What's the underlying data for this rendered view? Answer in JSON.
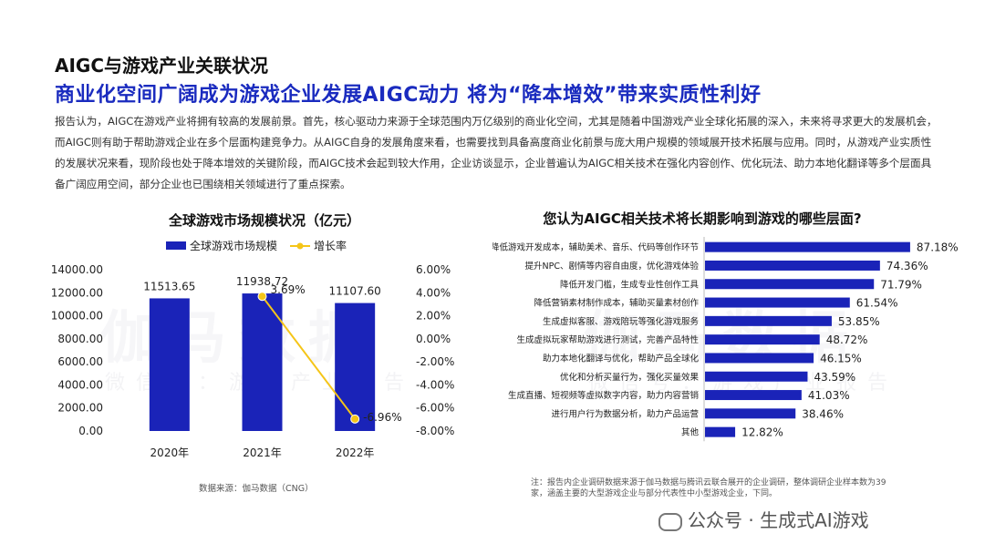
{
  "header": {
    "topic": "AIGC与游戏产业关联状况",
    "headline": "商业化空间广阔成为游戏企业发展AIGC动力 将为“降本增效”带来实质性利好"
  },
  "body_text": "报告认为，AIGC在游戏产业将拥有较高的发展前景。首先，核心驱动力来源于全球范围内万亿级别的商业化空间，尤其是随着中国游戏产业全球化拓展的深入，未来将寻求更大的发展机会，而AIGC则有助于帮助游戏企业在多个层面构建竞争力。从AIGC自身的发展角度来看，也需要找到具备高度商业化前景与庞大用户规模的领域展开技术拓展与应用。同时，从游戏产业实质性的发展状况来看，现阶段也处于降本增效的关键阶段，而AIGC技术会起到较大作用，企业访谈显示，企业普遍认为AIGC相关技术在强化内容创作、优化玩法、助力本地化翻译等多个层面具备广阔应用空间，部分企业也已围绕相关领域进行了重点探索。",
  "watermark": {
    "main": "伽马数据",
    "sub": "微信号：游戏产业报告"
  },
  "chart_data": [
    {
      "type": "bar+line",
      "title": "全球游戏市场规模状况（亿元）",
      "categories": [
        "2020年",
        "2021年",
        "2022年"
      ],
      "series": [
        {
          "name": "全球游戏市场规模",
          "type": "bar",
          "axis": "left",
          "color": "#1a23b8",
          "values": [
            11513.65,
            11938.72,
            11107.6
          ],
          "labels": [
            "11513.65",
            "11938.72",
            "11107.60"
          ]
        },
        {
          "name": "增长率",
          "type": "line",
          "axis": "right",
          "color": "#f5c518",
          "values": [
            null,
            3.69,
            -6.96
          ],
          "labels": [
            "",
            "3.69%",
            "-6.96%"
          ]
        }
      ],
      "y_left": {
        "min": 0,
        "max": 14000,
        "step": 2000,
        "ticks": [
          "0.00",
          "2000.00",
          "4000.00",
          "6000.00",
          "8000.00",
          "10000.00",
          "12000.00",
          "14000.00"
        ]
      },
      "y_right": {
        "min": -8,
        "max": 6,
        "step": 2,
        "ticks": [
          "-8.00%",
          "-6.00%",
          "-4.00%",
          "-2.00%",
          "0.00%",
          "2.00%",
          "4.00%",
          "6.00%"
        ]
      },
      "legend": "top-center",
      "source": "数据来源：伽马数据（CNG）"
    },
    {
      "type": "bar-horizontal",
      "title": "您认为AIGC相关技术将长期影响到游戏的哪些层面?",
      "color": "#1a23b8",
      "categories": [
        "降低游戏开发成本，辅助美术、音乐、代码等创作环节",
        "提升NPC、剧情等内容自由度，优化游戏体验",
        "降低开发门槛，生成专业性创作工具",
        "降低营销素材制作成本，辅助买量素材创作",
        "生成虚拟客服、游戏陪玩等强化游戏服务",
        "生成虚拟玩家帮助游戏进行测试，完善产品特性",
        "助力本地化翻译与优化，帮助产品全球化",
        "优化和分析买量行为，强化买量效果",
        "生成直播、短视频等虚拟数字内容，助力内容营销",
        "进行用户行为数据分析，助力产品运营",
        "其他"
      ],
      "values": [
        87.18,
        74.36,
        71.79,
        61.54,
        53.85,
        48.72,
        46.15,
        43.59,
        41.03,
        38.46,
        12.82
      ],
      "labels": [
        "87.18%",
        "74.36%",
        "71.79%",
        "61.54%",
        "53.85%",
        "48.72%",
        "46.15%",
        "43.59%",
        "41.03%",
        "38.46%",
        "12.82%"
      ],
      "xlim": [
        0,
        100
      ],
      "note": "注：报告内企业调研数据来源于伽马数据与腾讯云联合展开的企业调研，整体调研企业样本数为39家，涵盖主要的大型游戏企业与部分代表性中小型游戏企业，下同。"
    }
  ],
  "footer": {
    "account": "公众号 · 生成式AI游戏"
  }
}
